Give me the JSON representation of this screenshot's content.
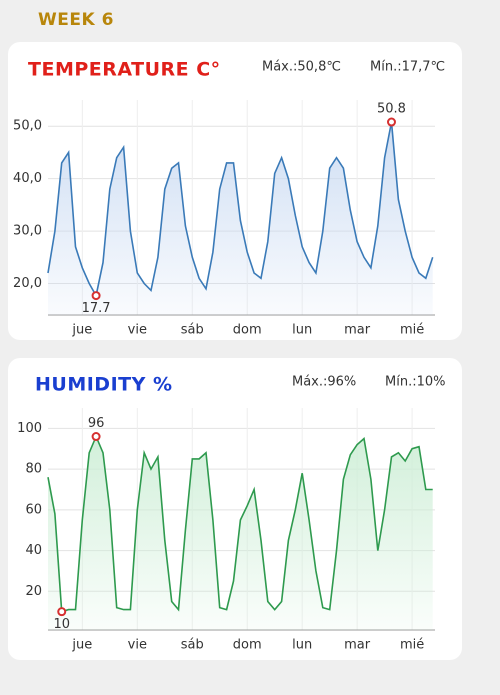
{
  "page": {
    "title": "WEEK 6"
  },
  "chart_data": [
    {
      "type": "line",
      "title": "TEMPERATURE C°",
      "max_label": "Máx.:50,8℃",
      "min_label": "Mín.:17,7℃",
      "title_color": "#e0201a",
      "color": "#3a7ab8",
      "fill": "#c9daf2",
      "x": [
        0,
        3,
        6,
        9,
        12,
        15,
        18,
        21,
        24,
        27,
        30,
        33,
        36,
        39,
        42,
        45,
        48,
        51,
        54,
        57,
        60,
        63,
        66,
        69,
        72,
        75,
        78,
        81,
        84,
        87,
        90,
        93,
        96,
        99,
        102,
        105,
        108,
        111,
        114,
        117,
        120,
        123,
        126,
        129,
        132,
        135,
        138,
        141,
        144,
        147,
        150,
        153,
        156,
        159,
        162,
        165,
        168
      ],
      "values": [
        22,
        30,
        43,
        45,
        27,
        23,
        20,
        17.7,
        24,
        38,
        44,
        46,
        30,
        22,
        20,
        18.7,
        25,
        38,
        42,
        43,
        31,
        25,
        21,
        19,
        26,
        38,
        43,
        43,
        32,
        26,
        22,
        21,
        28,
        41,
        44,
        40,
        33,
        27,
        24,
        22,
        30,
        42,
        44,
        42,
        34,
        28,
        25,
        23,
        31,
        44,
        50.8,
        36,
        30,
        25,
        22,
        21,
        25
      ],
      "xlim": [
        0,
        169
      ],
      "ylim": [
        14,
        55
      ],
      "xticks": [
        {
          "value": 15,
          "label": "jue"
        },
        {
          "value": 39,
          "label": "vie"
        },
        {
          "value": 63,
          "label": "sáb"
        },
        {
          "value": 87,
          "label": "dom"
        },
        {
          "value": 111,
          "label": "lun"
        },
        {
          "value": 135,
          "label": "mar"
        },
        {
          "value": 159,
          "label": "mié"
        }
      ],
      "yticks": [
        {
          "value": 20,
          "label": "20,0"
        },
        {
          "value": 30,
          "label": "30,0"
        },
        {
          "value": 40,
          "label": "40,0"
        },
        {
          "value": 50,
          "label": "50,0"
        }
      ],
      "grid": true,
      "mark_extremes": true
    },
    {
      "type": "line",
      "title": "HUMIDITY %",
      "max_label": "Máx.:96%",
      "min_label": "Mín.:10%",
      "title_color": "#1a3fd0",
      "color": "#2e9a4e",
      "fill": "#cdeed6",
      "x": [
        0,
        3,
        6,
        9,
        12,
        15,
        18,
        21,
        24,
        27,
        30,
        33,
        36,
        39,
        42,
        45,
        48,
        51,
        54,
        57,
        60,
        63,
        66,
        69,
        72,
        75,
        78,
        81,
        84,
        87,
        90,
        93,
        96,
        99,
        102,
        105,
        108,
        111,
        114,
        117,
        120,
        123,
        126,
        129,
        132,
        135,
        138,
        141,
        144,
        147,
        150,
        153,
        156,
        159,
        162,
        165,
        168
      ],
      "values": [
        76,
        58,
        10,
        11,
        11,
        55,
        88,
        96,
        88,
        60,
        12,
        11,
        11,
        60,
        88,
        80,
        86,
        45,
        15,
        11,
        50,
        85,
        85,
        88,
        55,
        12,
        11,
        25,
        55,
        62,
        70,
        45,
        15,
        11,
        15,
        45,
        60,
        78,
        55,
        30,
        12,
        11,
        40,
        75,
        87,
        92,
        95,
        75,
        40,
        60,
        86,
        88,
        84,
        90,
        91,
        70,
        70
      ],
      "xlim": [
        0,
        169
      ],
      "ylim": [
        1,
        110
      ],
      "xticks": [
        {
          "value": 15,
          "label": "jue"
        },
        {
          "value": 39,
          "label": "vie"
        },
        {
          "value": 63,
          "label": "sáb"
        },
        {
          "value": 87,
          "label": "dom"
        },
        {
          "value": 111,
          "label": "lun"
        },
        {
          "value": 135,
          "label": "mar"
        },
        {
          "value": 159,
          "label": "mié"
        }
      ],
      "yticks": [
        20,
        40,
        60,
        80,
        100
      ],
      "grid": true,
      "mark_extremes": true
    }
  ]
}
